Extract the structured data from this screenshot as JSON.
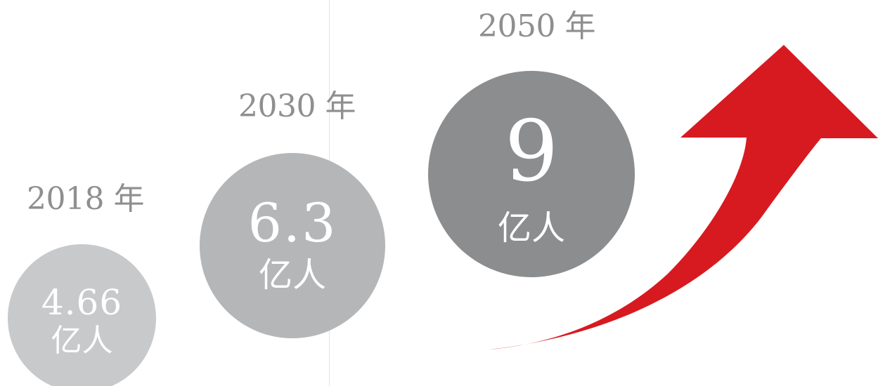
{
  "items": [
    {
      "year": "2018 年",
      "value": "4.66",
      "unit": "亿人"
    },
    {
      "year": "2030 年",
      "value": "6.3",
      "unit": "亿人"
    },
    {
      "year": "2050 年",
      "value": "9",
      "unit": "亿人"
    }
  ],
  "colors": {
    "circle_1": "#c8c9cb",
    "circle_2": "#b4b6b8",
    "circle_3": "#8c8d8f",
    "year_text": "#8f8f8f",
    "arrow": "#d71a20"
  },
  "icons": {
    "growth_arrow": "upward-curved-arrow-icon"
  }
}
